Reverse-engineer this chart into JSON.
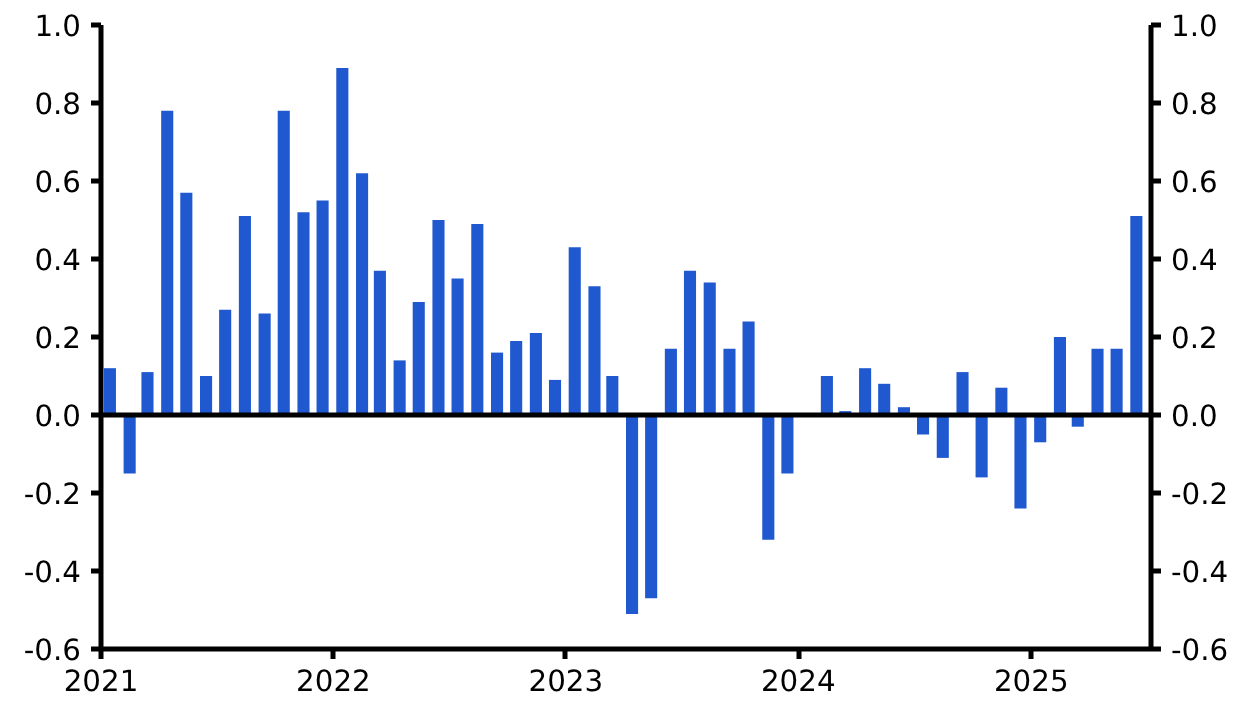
{
  "chart_data": {
    "type": "bar",
    "x": [
      "2021-01-15",
      "2021-02-15",
      "2021-03-15",
      "2021-04-15",
      "2021-05-15",
      "2021-06-15",
      "2021-07-15",
      "2021-08-15",
      "2021-09-15",
      "2021-10-15",
      "2021-11-15",
      "2021-12-15",
      "2022-01-15",
      "2022-02-15",
      "2022-03-15",
      "2022-04-15",
      "2022-05-15",
      "2022-06-15",
      "2022-07-15",
      "2022-08-15",
      "2022-09-15",
      "2022-10-15",
      "2022-11-15",
      "2022-12-15",
      "2023-01-15",
      "2023-02-15",
      "2023-03-15",
      "2023-04-15",
      "2023-05-15",
      "2023-06-15",
      "2023-07-15",
      "2023-08-15",
      "2023-09-15",
      "2023-10-15",
      "2023-11-15",
      "2023-12-15",
      "2024-01-15",
      "2024-02-15",
      "2024-03-15",
      "2024-04-15",
      "2024-05-15",
      "2024-06-15",
      "2024-07-15",
      "2024-08-15",
      "2024-09-15",
      "2024-10-15",
      "2024-11-15",
      "2024-12-15",
      "2025-01-15",
      "2025-02-15",
      "2025-03-15",
      "2025-04-15",
      "2025-05-15",
      "2025-06-15"
    ],
    "values": [
      0.12,
      -0.15,
      0.11,
      0.78,
      0.57,
      0.1,
      0.27,
      0.51,
      0.26,
      0.78,
      0.52,
      0.55,
      0.89,
      0.62,
      0.37,
      0.14,
      0.29,
      0.5,
      0.35,
      0.49,
      0.16,
      0.19,
      0.21,
      0.09,
      0.43,
      0.33,
      0.1,
      -0.51,
      -0.47,
      0.17,
      0.37,
      0.34,
      0.17,
      0.24,
      -0.32,
      -0.15,
      0.0,
      0.1,
      0.01,
      0.12,
      0.08,
      0.02,
      -0.05,
      -0.11,
      0.11,
      -0.16,
      0.07,
      -0.24,
      -0.07,
      0.2,
      -0.03,
      0.17,
      0.17,
      0.51
    ],
    "color": "#2059cf",
    "xlim": [
      "2021-01-01",
      "2025-07-08"
    ],
    "xticks": [
      {
        "value": "2021-01-01",
        "label": "2021"
      },
      {
        "value": "2022-01-01",
        "label": "2022"
      },
      {
        "value": "2023-01-01",
        "label": "2023"
      },
      {
        "value": "2024-01-01",
        "label": "2024"
      },
      {
        "value": "2025-01-01",
        "label": "2025"
      }
    ],
    "ylim": [
      -0.6,
      1.0
    ],
    "yticks": [
      {
        "value": 1.0,
        "label": "1.0"
      },
      0.8,
      0.6,
      0.4,
      0.2,
      {
        "value": 0.0,
        "label": "0.0"
      },
      -0.2,
      -0.4,
      -0.6
    ],
    "y2lim": [
      -0.6,
      1.0
    ],
    "y2ticks": [
      {
        "value": 1.0,
        "label": "1.0"
      },
      0.8,
      0.6,
      0.4,
      0.2,
      {
        "value": 0.0,
        "label": "0.0"
      },
      -0.2,
      -0.4,
      -0.6
    ],
    "ref_lines": [
      {
        "axis": "y",
        "value": 0.0,
        "color": "#000000"
      }
    ],
    "grid": false
  }
}
